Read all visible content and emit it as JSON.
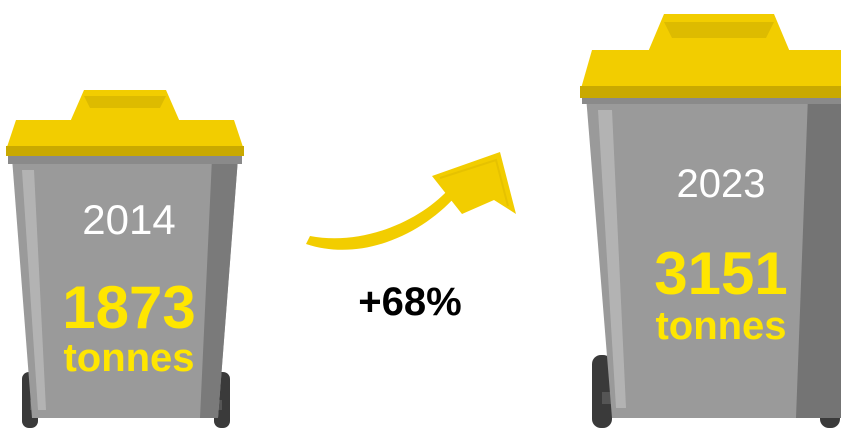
{
  "bin_2014": {
    "year": "2014",
    "amount": "1873",
    "unit": "tonnes"
  },
  "bin_2023": {
    "year": "2023",
    "amount": "3151",
    "unit": "tonnes"
  },
  "change": {
    "label": "+68%"
  },
  "colors": {
    "lid": "#f2cd00",
    "lid_shadow": "#c9a900",
    "body": "#9a9a9a",
    "body_dark": "#6e6e6e",
    "text_highlight": "#ffe600",
    "wheel": "#3a3a3a"
  }
}
